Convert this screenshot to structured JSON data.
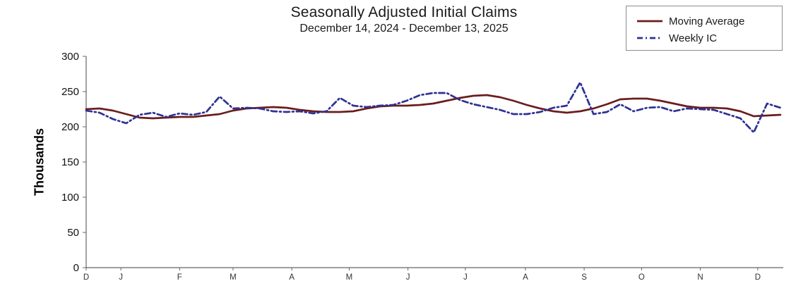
{
  "chart_data": {
    "type": "line",
    "title": "Seasonally Adjusted Initial Claims",
    "subtitle": "December 14, 2024 - December 13, 2025",
    "ylabel": "Thousands",
    "xlabel": "",
    "ylim": [
      0,
      300
    ],
    "y_ticks": [
      0,
      50,
      100,
      150,
      200,
      250,
      300
    ],
    "x_range": [
      0,
      52
    ],
    "x_unit": "weeks, Dec 14 2024 through Dec 13 2025",
    "x_tick_labels": [
      "D",
      "J",
      "F",
      "M",
      "A",
      "M",
      "J",
      "J",
      "A",
      "S",
      "O",
      "N",
      "D"
    ],
    "x_tick_weeks": [
      0,
      2.6,
      7.0,
      11.0,
      15.4,
      19.7,
      24.1,
      28.4,
      32.9,
      37.3,
      41.6,
      46.0,
      50.3
    ],
    "grid": false,
    "legend_position": "top-right",
    "axis_color": "#666666",
    "series": [
      {
        "name": "Moving Average",
        "color": "#6b1d1d",
        "style": "solid",
        "dash": "",
        "values": [
          225,
          226,
          223,
          218,
          213,
          212,
          213,
          214,
          214,
          216,
          218,
          223,
          226,
          227,
          228,
          227,
          224,
          222,
          221,
          221,
          222,
          226,
          229,
          230,
          230,
          231,
          233,
          237,
          241,
          244,
          245,
          242,
          237,
          231,
          226,
          222,
          220,
          222,
          226,
          232,
          239,
          240,
          240,
          237,
          233,
          229,
          227,
          227,
          226,
          222,
          215,
          216,
          217
        ]
      },
      {
        "name": "Weekly IC",
        "color": "#2e3192",
        "style": "dash-dot",
        "dash": "8 4 2 4",
        "values": [
          223,
          220,
          211,
          205,
          217,
          220,
          214,
          219,
          217,
          221,
          243,
          226,
          227,
          226,
          222,
          221,
          222,
          219,
          222,
          241,
          230,
          228,
          230,
          231,
          237,
          245,
          248,
          248,
          238,
          232,
          228,
          224,
          218,
          218,
          221,
          227,
          230,
          263,
          218,
          221,
          232,
          222,
          227,
          228,
          222,
          226,
          225,
          224,
          218,
          212,
          192,
          233,
          227
        ]
      }
    ]
  }
}
